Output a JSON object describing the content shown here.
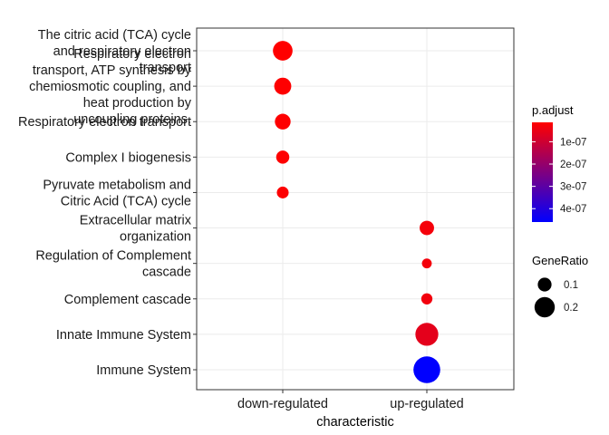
{
  "chart_data": {
    "type": "scatter",
    "xlabel": "characteristic",
    "categories_x": [
      "down-regulated",
      "up-regulated"
    ],
    "categories_y": [
      "Immune System",
      "Innate Immune System",
      "Complement cascade",
      "Regulation of Complement cascade",
      "Extracellular matrix organization",
      "Pyruvate metabolism and Citric Acid (TCA) cycle",
      "Complex I biogenesis",
      "Respiratory electron transport",
      "Respiratory electron transport, ATP synthesis by chemiosmotic coupling, and heat production by uncoupling proteins.",
      "The citric acid (TCA) cycle and respiratory electron transport"
    ],
    "y_label_lines": [
      [
        "Immune System"
      ],
      [
        "Innate Immune System"
      ],
      [
        "Complement cascade"
      ],
      [
        "Regulation of Complement",
        "cascade"
      ],
      [
        "Extracellular matrix",
        "organization"
      ],
      [
        "Pyruvate metabolism and",
        "Citric Acid (TCA) cycle"
      ],
      [
        "Complex I biogenesis"
      ],
      [
        "Respiratory electron transport"
      ],
      [
        "Respiratory electron",
        "transport, ATP synthesis by",
        "chemiosmotic coupling, and",
        "heat production by",
        "uncoupling proteins."
      ],
      [
        "The citric acid (TCA) cycle",
        "and respiratory electron",
        "transport"
      ]
    ],
    "points": [
      {
        "x": "down-regulated",
        "y": "The citric acid (TCA) cycle and respiratory electron transport",
        "gene_ratio": 0.19,
        "p_adjust": 1.3e-08
      },
      {
        "x": "down-regulated",
        "y": "Respiratory electron transport, ATP synthesis by chemiosmotic coupling, and heat production by uncoupling proteins.",
        "gene_ratio": 0.15,
        "p_adjust": 1.4e-08
      },
      {
        "x": "down-regulated",
        "y": "Respiratory electron transport",
        "gene_ratio": 0.13,
        "p_adjust": 1.4e-08
      },
      {
        "x": "down-regulated",
        "y": "Complex I biogenesis",
        "gene_ratio": 0.09,
        "p_adjust": 1.5e-08
      },
      {
        "x": "down-regulated",
        "y": "Pyruvate metabolism and Citric Acid (TCA) cycle",
        "gene_ratio": 0.07,
        "p_adjust": 1.7e-08
      },
      {
        "x": "up-regulated",
        "y": "Extracellular matrix organization",
        "gene_ratio": 0.11,
        "p_adjust": 3e-08
      },
      {
        "x": "up-regulated",
        "y": "Regulation of Complement cascade",
        "gene_ratio": 0.04,
        "p_adjust": 3.2e-08
      },
      {
        "x": "up-regulated",
        "y": "Complement cascade",
        "gene_ratio": 0.06,
        "p_adjust": 3.5e-08
      },
      {
        "x": "up-regulated",
        "y": "Innate Immune System",
        "gene_ratio": 0.24,
        "p_adjust": 6e-08
      },
      {
        "x": "up-regulated",
        "y": "Immune System",
        "gene_ratio": 0.3,
        "p_adjust": 4.6e-07
      }
    ],
    "color_legend": {
      "title": "p.adjust",
      "breaks": [
        1e-07,
        2e-07,
        3e-07,
        4e-07
      ],
      "labels": [
        "1e-07",
        "2e-07",
        "3e-07",
        "4e-07"
      ],
      "range": [
        1.3e-08,
        4.6e-07
      ],
      "low_color": "#FF0000",
      "high_color": "#0000FF"
    },
    "size_legend": {
      "title": "GeneRatio",
      "breaks": [
        0.1,
        0.2
      ],
      "labels": [
        "0.1",
        "0.2"
      ]
    },
    "grid": true,
    "legend_position": "right"
  }
}
